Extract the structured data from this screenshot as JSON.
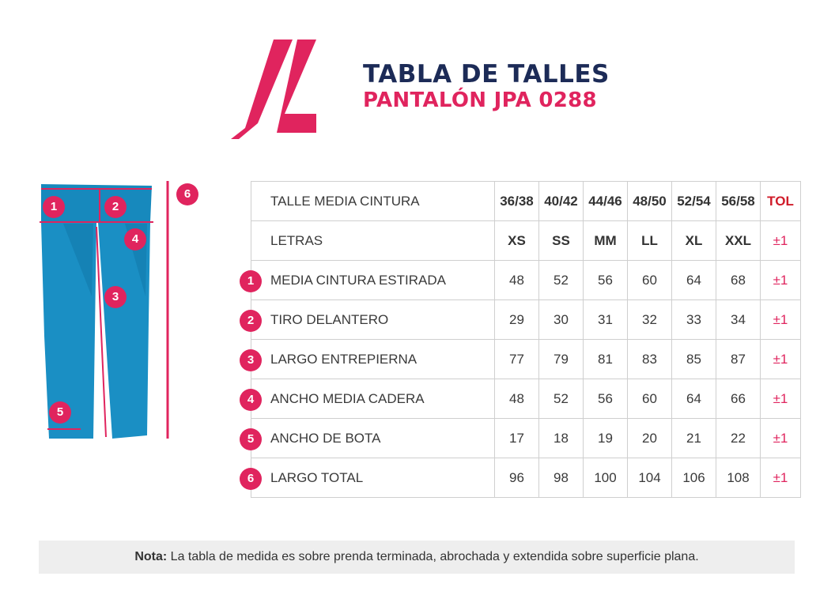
{
  "header": {
    "title": "TABLA DE TALLES",
    "subtitle": "PANTALÓN JPA 0288",
    "brand_color": "#e0245e",
    "title_color": "#1c2b57"
  },
  "diagram": {
    "markers": [
      "1",
      "2",
      "3",
      "4",
      "5",
      "6"
    ],
    "garment_color": "#1a8fc4"
  },
  "table": {
    "header_label": "TALLE MEDIA CINTURA",
    "sizes": [
      "36/38",
      "40/42",
      "44/46",
      "48/50",
      "52/54",
      "56/58"
    ],
    "tol_header": "TOL",
    "letters_label": "LETRAS",
    "letters": [
      "XS",
      "SS",
      "MM",
      "LL",
      "XL",
      "XXL"
    ],
    "letters_tol": "±1",
    "rows": [
      {
        "num": "1",
        "label": "MEDIA CINTURA ESTIRADA",
        "values": [
          "48",
          "52",
          "56",
          "60",
          "64",
          "68"
        ],
        "tol": "±1"
      },
      {
        "num": "2",
        "label": "TIRO DELANTERO",
        "values": [
          "29",
          "30",
          "31",
          "32",
          "33",
          "34"
        ],
        "tol": "±1"
      },
      {
        "num": "3",
        "label": "LARGO ENTREPIERNA",
        "values": [
          "77",
          "79",
          "81",
          "83",
          "85",
          "87"
        ],
        "tol": "±1"
      },
      {
        "num": "4",
        "label": "ANCHO MEDIA CADERA",
        "values": [
          "48",
          "52",
          "56",
          "60",
          "64",
          "66"
        ],
        "tol": "±1"
      },
      {
        "num": "5",
        "label": "ANCHO DE BOTA",
        "values": [
          "17",
          "18",
          "19",
          "20",
          "21",
          "22"
        ],
        "tol": "±1"
      },
      {
        "num": "6",
        "label": "LARGO TOTAL",
        "values": [
          "96",
          "98",
          "100",
          "104",
          "106",
          "108"
        ],
        "tol": "±1"
      }
    ]
  },
  "note": {
    "label": "Nota:",
    "text": " La tabla de medida es sobre prenda terminada, abrochada y extendida sobre superficie plana."
  }
}
